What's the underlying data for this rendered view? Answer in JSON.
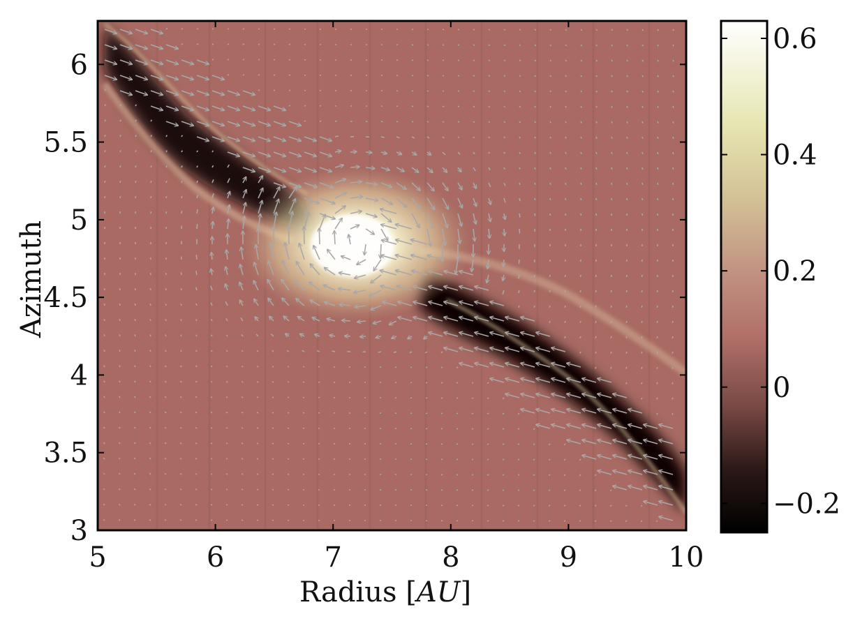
{
  "chart_data": {
    "type": "heatmap",
    "title": "",
    "xlabel_text": "Radius [",
    "xlabel_unit": "AU",
    "xlabel_close": "]",
    "ylabel": "Azimuth",
    "xlim": [
      5,
      10
    ],
    "ylim": [
      3,
      6.28
    ],
    "x_ticks": [
      5,
      6,
      7,
      8,
      9,
      10
    ],
    "x_tick_labels": [
      "5",
      "6",
      "7",
      "8",
      "9",
      "10"
    ],
    "y_ticks": [
      3,
      3.5,
      4,
      4.5,
      5,
      5.5,
      6
    ],
    "y_tick_labels": [
      "3",
      "3.5",
      "4",
      "4.5",
      "5",
      "5.5",
      "6"
    ],
    "colorbar": {
      "range": [
        -0.25,
        0.63
      ],
      "ticks": [
        -0.2,
        0,
        0.2,
        0.4,
        0.6
      ],
      "tick_labels": [
        "−0.2",
        "0",
        "0.2",
        "0.4",
        "0.6"
      ],
      "colormap": [
        "#000000",
        "#3a2420",
        "#7a4a46",
        "#b06f68",
        "#c99a88",
        "#ddd3a6",
        "#f0f0c8",
        "#ffffff"
      ]
    },
    "field": {
      "planet_position": [
        7.2,
        4.85
      ],
      "background_value": 0.03,
      "overdensity_peak": 0.63,
      "underdensity_trough": -0.25
    },
    "vector_field": {
      "color": "#a8a8a8",
      "description": "velocity perturbation arrows, circulating around the planet"
    }
  }
}
